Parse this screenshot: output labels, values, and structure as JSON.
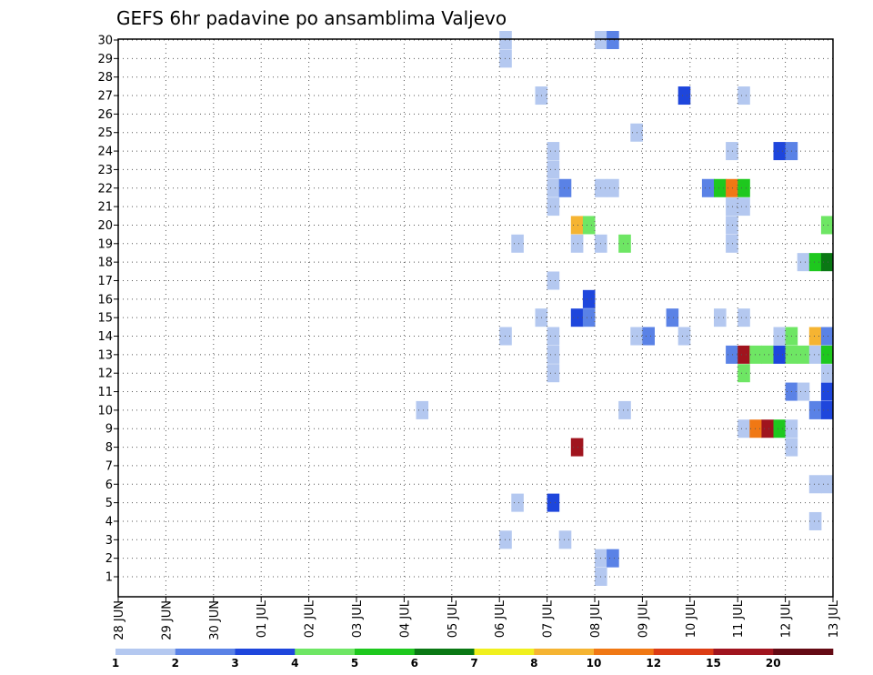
{
  "chart_data": {
    "type": "heatmap",
    "title": "GEFS 6hr padavine po ansamblima Valjevo",
    "xlabel": "",
    "ylabel": "",
    "x_tick_labels": [
      "28 JUN",
      "29 JUN",
      "30 JUN",
      "01 JUL",
      "02 JUL",
      "03 JUL",
      "04 JUL",
      "05 JUL",
      "06 JUL",
      "07 JUL",
      "08 JUL",
      "09 JUL",
      "10 JUL",
      "11 JUL",
      "12 JUL",
      "13 JUL"
    ],
    "y_tick_labels": [
      "1",
      "2",
      "3",
      "4",
      "5",
      "6",
      "7",
      "8",
      "9",
      "10",
      "11",
      "12",
      "13",
      "14",
      "15",
      "16",
      "17",
      "18",
      "19",
      "20",
      "21",
      "22",
      "23",
      "24",
      "25",
      "26",
      "27",
      "28",
      "29",
      "30"
    ],
    "x_unit": "6-hour step (0 = 28 JUN 00Z)",
    "x_range": [
      0,
      60
    ],
    "y_range": [
      1,
      30
    ],
    "grid": true,
    "colorbar": {
      "tick_labels": [
        "1",
        "2",
        "3",
        "4",
        "5",
        "6",
        "7",
        "8",
        "10",
        "12",
        "15",
        "20"
      ],
      "colors": [
        "#b4c8f0",
        "#5a82e6",
        "#1e46dc",
        "#6ee664",
        "#1ec81e",
        "#0a7814",
        "#f0f01e",
        "#f5b432",
        "#f07814",
        "#dc3c14",
        "#a0141e",
        "#640a14"
      ]
    },
    "cells": [
      {
        "member": 30,
        "step": 32,
        "cls": 0
      },
      {
        "member": 29,
        "step": 32,
        "cls": 0
      },
      {
        "member": 30,
        "step": 40,
        "cls": 0
      },
      {
        "member": 30,
        "step": 41,
        "cls": 1
      },
      {
        "member": 27,
        "step": 35,
        "cls": 0
      },
      {
        "member": 27,
        "step": 47,
        "cls": 2
      },
      {
        "member": 27,
        "step": 52,
        "cls": 0
      },
      {
        "member": 25,
        "step": 43,
        "cls": 0
      },
      {
        "member": 24,
        "step": 36,
        "cls": 0
      },
      {
        "member": 24,
        "step": 51,
        "cls": 0
      },
      {
        "member": 24,
        "step": 55,
        "cls": 2
      },
      {
        "member": 24,
        "step": 56,
        "cls": 1
      },
      {
        "member": 23,
        "step": 36,
        "cls": 0
      },
      {
        "member": 22,
        "step": 36,
        "cls": 0
      },
      {
        "member": 22,
        "step": 37,
        "cls": 1
      },
      {
        "member": 22,
        "step": 40,
        "cls": 0
      },
      {
        "member": 22,
        "step": 41,
        "cls": 0
      },
      {
        "member": 22,
        "step": 49,
        "cls": 1
      },
      {
        "member": 22,
        "step": 50,
        "cls": 4
      },
      {
        "member": 22,
        "step": 51,
        "cls": 8
      },
      {
        "member": 22,
        "step": 52,
        "cls": 4
      },
      {
        "member": 21,
        "step": 36,
        "cls": 0
      },
      {
        "member": 21,
        "step": 51,
        "cls": 0
      },
      {
        "member": 21,
        "step": 52,
        "cls": 0
      },
      {
        "member": 20,
        "step": 38,
        "cls": 7
      },
      {
        "member": 20,
        "step": 39,
        "cls": 3
      },
      {
        "member": 20,
        "step": 51,
        "cls": 0
      },
      {
        "member": 20,
        "step": 59,
        "cls": 3
      },
      {
        "member": 19,
        "step": 33,
        "cls": 0
      },
      {
        "member": 19,
        "step": 38,
        "cls": 0
      },
      {
        "member": 19,
        "step": 40,
        "cls": 0
      },
      {
        "member": 19,
        "step": 42,
        "cls": 3
      },
      {
        "member": 19,
        "step": 51,
        "cls": 0
      },
      {
        "member": 18,
        "step": 57,
        "cls": 0
      },
      {
        "member": 18,
        "step": 58,
        "cls": 4
      },
      {
        "member": 18,
        "step": 59,
        "cls": 5
      },
      {
        "member": 17,
        "step": 36,
        "cls": 0
      },
      {
        "member": 16,
        "step": 39,
        "cls": 2
      },
      {
        "member": 15,
        "step": 35,
        "cls": 0
      },
      {
        "member": 15,
        "step": 38,
        "cls": 2
      },
      {
        "member": 15,
        "step": 39,
        "cls": 1
      },
      {
        "member": 15,
        "step": 46,
        "cls": 1
      },
      {
        "member": 15,
        "step": 50,
        "cls": 0
      },
      {
        "member": 15,
        "step": 52,
        "cls": 0
      },
      {
        "member": 14,
        "step": 32,
        "cls": 0
      },
      {
        "member": 14,
        "step": 36,
        "cls": 0
      },
      {
        "member": 14,
        "step": 43,
        "cls": 0
      },
      {
        "member": 14,
        "step": 44,
        "cls": 1
      },
      {
        "member": 14,
        "step": 47,
        "cls": 0
      },
      {
        "member": 14,
        "step": 55,
        "cls": 0
      },
      {
        "member": 14,
        "step": 56,
        "cls": 3
      },
      {
        "member": 14,
        "step": 58,
        "cls": 7
      },
      {
        "member": 14,
        "step": 59,
        "cls": 1
      },
      {
        "member": 13,
        "step": 36,
        "cls": 0
      },
      {
        "member": 13,
        "step": 51,
        "cls": 1
      },
      {
        "member": 13,
        "step": 52,
        "cls": 10
      },
      {
        "member": 13,
        "step": 53,
        "cls": 3
      },
      {
        "member": 13,
        "step": 54,
        "cls": 3
      },
      {
        "member": 13,
        "step": 55,
        "cls": 2
      },
      {
        "member": 13,
        "step": 56,
        "cls": 3
      },
      {
        "member": 13,
        "step": 57,
        "cls": 3
      },
      {
        "member": 13,
        "step": 58,
        "cls": 0
      },
      {
        "member": 13,
        "step": 59,
        "cls": 4
      },
      {
        "member": 12,
        "step": 36,
        "cls": 0
      },
      {
        "member": 12,
        "step": 52,
        "cls": 3
      },
      {
        "member": 12,
        "step": 59,
        "cls": 0
      },
      {
        "member": 11,
        "step": 56,
        "cls": 1
      },
      {
        "member": 11,
        "step": 57,
        "cls": 0
      },
      {
        "member": 11,
        "step": 59,
        "cls": 2
      },
      {
        "member": 10,
        "step": 25,
        "cls": 0
      },
      {
        "member": 10,
        "step": 42,
        "cls": 0
      },
      {
        "member": 10,
        "step": 58,
        "cls": 1
      },
      {
        "member": 10,
        "step": 59,
        "cls": 2
      },
      {
        "member": 9,
        "step": 52,
        "cls": 0
      },
      {
        "member": 9,
        "step": 53,
        "cls": 8
      },
      {
        "member": 9,
        "step": 54,
        "cls": 10
      },
      {
        "member": 9,
        "step": 55,
        "cls": 4
      },
      {
        "member": 9,
        "step": 56,
        "cls": 0
      },
      {
        "member": 8,
        "step": 38,
        "cls": 10
      },
      {
        "member": 8,
        "step": 56,
        "cls": 0
      },
      {
        "member": 6,
        "step": 58,
        "cls": 0
      },
      {
        "member": 6,
        "step": 59,
        "cls": 0
      },
      {
        "member": 5,
        "step": 33,
        "cls": 0
      },
      {
        "member": 5,
        "step": 36,
        "cls": 2
      },
      {
        "member": 4,
        "step": 58,
        "cls": 0
      },
      {
        "member": 3,
        "step": 32,
        "cls": 0
      },
      {
        "member": 3,
        "step": 37,
        "cls": 0
      },
      {
        "member": 2,
        "step": 40,
        "cls": 0
      },
      {
        "member": 2,
        "step": 41,
        "cls": 1
      },
      {
        "member": 1,
        "step": 40,
        "cls": 0
      }
    ]
  }
}
